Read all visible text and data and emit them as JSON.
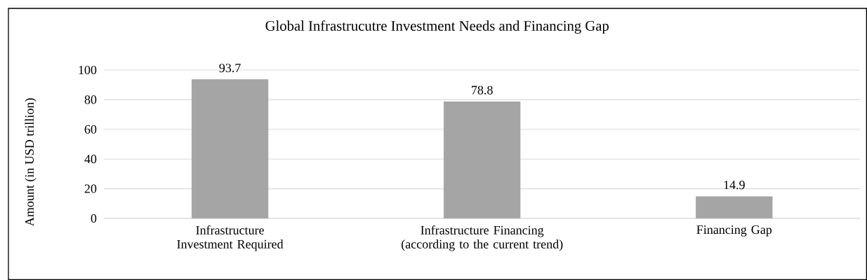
{
  "chart_data": {
    "type": "bar",
    "title": "Global Infrastrucutre Investment Needs and Financing Gap",
    "ylabel": "Amount (in USD trillion)",
    "categories": [
      "Infrastructure Investment Required",
      "Infrastructure Financing (according to the current trend)",
      "Financing Gap"
    ],
    "values": [
      93.7,
      78.8,
      14.9
    ],
    "color": "#a5a5a5",
    "ylim": [
      0,
      100
    ],
    "yticks": [
      0,
      20,
      40,
      60,
      80,
      100
    ],
    "grid": "y",
    "data_labels": true
  }
}
